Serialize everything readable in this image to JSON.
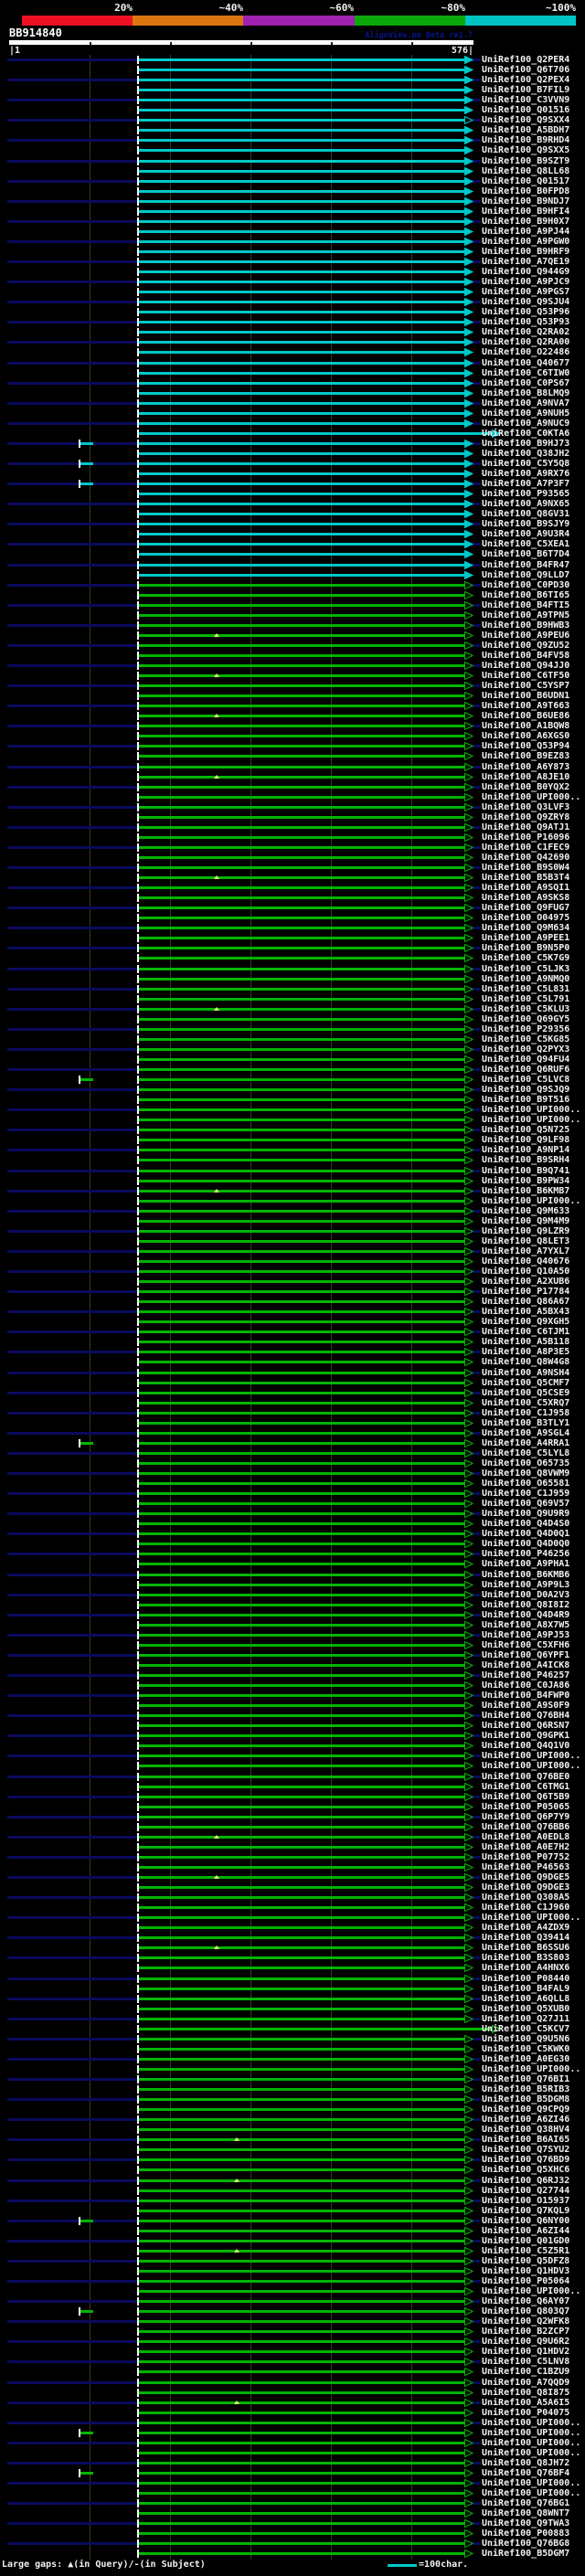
{
  "header": {
    "scale": {
      "labels": [
        "20%",
        "~40%",
        "~60%",
        "~80%",
        "~100%"
      ],
      "colors": [
        "#ee1124",
        "#dd7611",
        "#a121b1",
        "#0aa80a",
        "#00c4c4"
      ]
    },
    "query_name": "BB914840",
    "app_title": "AlignView.pm Beta re1.7",
    "ruler": {
      "start_label": "|1",
      "end_label": "576|"
    }
  },
  "footer": {
    "gaps_legend": "Large gaps: ▲(in Query)/-(in Subject)",
    "scale_legend": "=100char."
  },
  "hit_colors": {
    "cyan": "#00c8c8",
    "green": "#00b400",
    "baseline": "#0a0a5e"
  },
  "rows": [
    {
      "label": "UniRef100_Q2PER4",
      "c": "cyan"
    },
    {
      "label": "UniRef100_Q6T706",
      "c": "cyan"
    },
    {
      "label": "UniRef100_Q2PEX4",
      "c": "cyan"
    },
    {
      "label": "UniRef100_B7FIL9",
      "c": "cyan"
    },
    {
      "label": "UniRef100_C3VVN9",
      "c": "cyan"
    },
    {
      "label": "UniRef100_Q01516",
      "c": "cyan"
    },
    {
      "label": "UniRef100_Q9SXX4",
      "c": "cyan",
      "hollow": 1
    },
    {
      "label": "UniRef100_A5BDH7",
      "c": "cyan"
    },
    {
      "label": "UniRef100_B9RHD4",
      "c": "cyan"
    },
    {
      "label": "UniRef100_Q9SXX5",
      "c": "cyan"
    },
    {
      "label": "UniRef100_B9SZT9",
      "c": "cyan"
    },
    {
      "label": "UniRef100_Q8LL68",
      "c": "cyan"
    },
    {
      "label": "UniRef100_Q01517",
      "c": "cyan"
    },
    {
      "label": "UniRef100_B0FPD8",
      "c": "cyan"
    },
    {
      "label": "UniRef100_B9NDJ7",
      "c": "cyan"
    },
    {
      "label": "UniRef100_B9HFI4",
      "c": "cyan"
    },
    {
      "label": "UniRef100_B9H0X7",
      "c": "cyan"
    },
    {
      "label": "UniRef100_A9PJ44",
      "c": "cyan"
    },
    {
      "label": "UniRef100_A9PGW0",
      "c": "cyan"
    },
    {
      "label": "UniRef100_B9HRF9",
      "c": "cyan"
    },
    {
      "label": "UniRef100_A7QE19",
      "c": "cyan"
    },
    {
      "label": "UniRef100_Q944G9",
      "c": "cyan"
    },
    {
      "label": "UniRef100_A9PJC9",
      "c": "cyan"
    },
    {
      "label": "UniRef100_A9PGS7",
      "c": "cyan"
    },
    {
      "label": "UniRef100_Q9SJU4",
      "c": "cyan"
    },
    {
      "label": "UniRef100_Q53P96",
      "c": "cyan"
    },
    {
      "label": "UniRef100_Q53P93",
      "c": "cyan"
    },
    {
      "label": "UniRef100_Q2RA02",
      "c": "cyan"
    },
    {
      "label": "UniRef100_Q2RA00",
      "c": "cyan"
    },
    {
      "label": "UniRef100_O22486",
      "c": "cyan"
    },
    {
      "label": "UniRef100_Q40677",
      "c": "cyan"
    },
    {
      "label": "UniRef100_C6TIW0",
      "c": "cyan"
    },
    {
      "label": "UniRef100_C0PS67",
      "c": "cyan"
    },
    {
      "label": "UniRef100_B8LMQ9",
      "c": "cyan"
    },
    {
      "label": "UniRef100_A9NVA7",
      "c": "cyan"
    },
    {
      "label": "UniRef100_A9NUH5",
      "c": "cyan"
    },
    {
      "label": "UniRef100_A9NUC9",
      "c": "cyan"
    },
    {
      "label": "UniRef100_C0KTA6",
      "c": "cyan",
      "ext": 1
    },
    {
      "label": "UniRef100_B9HJ73",
      "c": "cyan",
      "lead": 1
    },
    {
      "label": "UniRef100_Q38JH2",
      "c": "cyan"
    },
    {
      "label": "UniRef100_C5Y5Q8",
      "c": "cyan",
      "lead": 1
    },
    {
      "label": "UniRef100_A9RX76",
      "c": "cyan"
    },
    {
      "label": "UniRef100_A7P3F7",
      "c": "cyan",
      "lead": 1
    },
    {
      "label": "UniRef100_P93565",
      "c": "cyan"
    },
    {
      "label": "UniRef100_A9NX65",
      "c": "cyan"
    },
    {
      "label": "UniRef100_Q8GV31",
      "c": "cyan"
    },
    {
      "label": "UniRef100_B9SJY9",
      "c": "cyan"
    },
    {
      "label": "UniRef100_A9U3R4",
      "c": "cyan"
    },
    {
      "label": "UniRef100_C5XEA1",
      "c": "cyan"
    },
    {
      "label": "UniRef100_B6T7D4",
      "c": "cyan"
    },
    {
      "label": "UniRef100_B4FR47",
      "c": "cyan"
    },
    {
      "label": "UniRef100_Q9LLD7",
      "c": "cyan"
    },
    {
      "label": "UniRef100_C0PD30",
      "c": "green"
    },
    {
      "label": "UniRef100_B6TI65",
      "c": "green"
    },
    {
      "label": "UniRef100_B4FTI5",
      "c": "green"
    },
    {
      "label": "UniRef100_A9TPN5",
      "c": "green"
    },
    {
      "label": "UniRef100_B9HWB3",
      "c": "green"
    },
    {
      "label": "UniRef100_A9PEU6",
      "c": "green",
      "dot": 234
    },
    {
      "label": "UniRef100_Q9ZU52",
      "c": "green"
    },
    {
      "label": "UniRef100_B4FV58",
      "c": "green"
    },
    {
      "label": "UniRef100_Q94JJ0",
      "c": "green"
    },
    {
      "label": "UniRef100_C6TF50",
      "c": "green",
      "dot": 234
    },
    {
      "label": "UniRef100_C5YSP7",
      "c": "green"
    },
    {
      "label": "UniRef100_B6UDN1",
      "c": "green"
    },
    {
      "label": "UniRef100_A9T663",
      "c": "green"
    },
    {
      "label": "UniRef100_B6UE86",
      "c": "green",
      "dot": 234
    },
    {
      "label": "UniRef100_A1BQW8",
      "c": "green"
    },
    {
      "label": "UniRef100_A6XGS0",
      "c": "green"
    },
    {
      "label": "UniRef100_Q53P94",
      "c": "green"
    },
    {
      "label": "UniRef100_B9EZ83",
      "c": "green"
    },
    {
      "label": "UniRef100_A6Y873",
      "c": "green"
    },
    {
      "label": "UniRef100_A8JE10",
      "c": "green",
      "dot": 234
    },
    {
      "label": "UniRef100_B0YQX2",
      "c": "green"
    },
    {
      "label": "UniRef100_UPI000..",
      "c": "green"
    },
    {
      "label": "UniRef100_Q3LVF3",
      "c": "green"
    },
    {
      "label": "UniRef100_Q9ZRY8",
      "c": "green"
    },
    {
      "label": "UniRef100_Q9ATJ1",
      "c": "green"
    },
    {
      "label": "UniRef100_P16096",
      "c": "green"
    },
    {
      "label": "UniRef100_C1FEC9",
      "c": "green"
    },
    {
      "label": "UniRef100_Q42690",
      "c": "green"
    },
    {
      "label": "UniRef100_B9S0W4",
      "c": "green"
    },
    {
      "label": "UniRef100_B5B3T4",
      "c": "green",
      "dot": 234
    },
    {
      "label": "UniRef100_A9SQI1",
      "c": "green"
    },
    {
      "label": "UniRef100_A9SKS8",
      "c": "green"
    },
    {
      "label": "UniRef100_Q9FUG7",
      "c": "green"
    },
    {
      "label": "UniRef100_O04975",
      "c": "green"
    },
    {
      "label": "UniRef100_Q9M634",
      "c": "green"
    },
    {
      "label": "UniRef100_A9PEE1",
      "c": "green"
    },
    {
      "label": "UniRef100_B9N5P0",
      "c": "green"
    },
    {
      "label": "UniRef100_C5K7G9",
      "c": "green"
    },
    {
      "label": "UniRef100_C5LJK3",
      "c": "green"
    },
    {
      "label": "UniRef100_A9NMQ0",
      "c": "green"
    },
    {
      "label": "UniRef100_C5L831",
      "c": "green"
    },
    {
      "label": "UniRef100_C5L791",
      "c": "green"
    },
    {
      "label": "UniRef100_C5KLU3",
      "c": "green",
      "dot": 234
    },
    {
      "label": "UniRef100_Q69GY5",
      "c": "green"
    },
    {
      "label": "UniRef100_P29356",
      "c": "green"
    },
    {
      "label": "UniRef100_C5KG85",
      "c": "green"
    },
    {
      "label": "UniRef100_Q2PYX3",
      "c": "green"
    },
    {
      "label": "UniRef100_Q94FU4",
      "c": "green"
    },
    {
      "label": "UniRef100_Q6RUF6",
      "c": "green"
    },
    {
      "label": "UniRef100_C5LVC8",
      "c": "green",
      "lead": 1
    },
    {
      "label": "UniRef100_Q9SJQ9",
      "c": "green"
    },
    {
      "label": "UniRef100_B9T516",
      "c": "green"
    },
    {
      "label": "UniRef100_UPI000..",
      "c": "green"
    },
    {
      "label": "UniRef100_UPI000..",
      "c": "green"
    },
    {
      "label": "UniRef100_Q5N725",
      "c": "green"
    },
    {
      "label": "UniRef100_Q9LF98",
      "c": "green"
    },
    {
      "label": "UniRef100_A9NP14",
      "c": "green"
    },
    {
      "label": "UniRef100_B9SRH4",
      "c": "green"
    },
    {
      "label": "UniRef100_B9Q741",
      "c": "green"
    },
    {
      "label": "UniRef100_B9PW34",
      "c": "green"
    },
    {
      "label": "UniRef100_B6KMB7",
      "c": "green",
      "dot": 234
    },
    {
      "label": "UniRef100_UPI000..",
      "c": "green"
    },
    {
      "label": "UniRef100_Q9M633",
      "c": "green"
    },
    {
      "label": "UniRef100_Q9M4M9",
      "c": "green"
    },
    {
      "label": "UniRef100_Q9LZR9",
      "c": "green"
    },
    {
      "label": "UniRef100_Q8LET3",
      "c": "green"
    },
    {
      "label": "UniRef100_A7YXL7",
      "c": "green"
    },
    {
      "label": "UniRef100_Q40676",
      "c": "green"
    },
    {
      "label": "UniRef100_Q10A50",
      "c": "green"
    },
    {
      "label": "UniRef100_A2XUB6",
      "c": "green"
    },
    {
      "label": "UniRef100_P17784",
      "c": "green"
    },
    {
      "label": "UniRef100_Q86A67",
      "c": "green"
    },
    {
      "label": "UniRef100_A5BX43",
      "c": "green"
    },
    {
      "label": "UniRef100_Q9XGH5",
      "c": "green"
    },
    {
      "label": "UniRef100_C6TJM1",
      "c": "green"
    },
    {
      "label": "UniRef100_A5B118",
      "c": "green"
    },
    {
      "label": "UniRef100_A8P3E5",
      "c": "green"
    },
    {
      "label": "UniRef100_Q8W4G8",
      "c": "green"
    },
    {
      "label": "UniRef100_A9NSH4",
      "c": "green"
    },
    {
      "label": "UniRef100_Q5CMF7",
      "c": "green"
    },
    {
      "label": "UniRef100_Q5CSE9",
      "c": "green"
    },
    {
      "label": "UniRef100_C5XRQ7",
      "c": "green"
    },
    {
      "label": "UniRef100_C1J958",
      "c": "green"
    },
    {
      "label": "UniRef100_B3TLY1",
      "c": "green"
    },
    {
      "label": "UniRef100_A9SGL4",
      "c": "green"
    },
    {
      "label": "UniRef100_A4RRA1",
      "c": "green",
      "lead": 1
    },
    {
      "label": "UniRef100_C5LYL8",
      "c": "green"
    },
    {
      "label": "UniRef100_O65735",
      "c": "green"
    },
    {
      "label": "UniRef100_Q8VWM9",
      "c": "green"
    },
    {
      "label": "UniRef100_O65581",
      "c": "green"
    },
    {
      "label": "UniRef100_C1J959",
      "c": "green"
    },
    {
      "label": "UniRef100_Q69V57",
      "c": "green"
    },
    {
      "label": "UniRef100_Q9U9R9",
      "c": "green"
    },
    {
      "label": "UniRef100_Q4D4S0",
      "c": "green"
    },
    {
      "label": "UniRef100_Q4D0Q1",
      "c": "green"
    },
    {
      "label": "UniRef100_Q4D0Q0",
      "c": "green"
    },
    {
      "label": "UniRef100_P46256",
      "c": "green"
    },
    {
      "label": "UniRef100_A9PHA1",
      "c": "green"
    },
    {
      "label": "UniRef100_B6KMB6",
      "c": "green"
    },
    {
      "label": "UniRef100_A9P9L3",
      "c": "green"
    },
    {
      "label": "UniRef100_D0A2V3",
      "c": "green"
    },
    {
      "label": "UniRef100_Q8I8I2",
      "c": "green"
    },
    {
      "label": "UniRef100_Q4D4R9",
      "c": "green"
    },
    {
      "label": "UniRef100_A8X7W5",
      "c": "green"
    },
    {
      "label": "UniRef100_A9PJ53",
      "c": "green"
    },
    {
      "label": "UniRef100_C5XFH6",
      "c": "green"
    },
    {
      "label": "UniRef100_Q6YPF1",
      "c": "green"
    },
    {
      "label": "UniRef100_A4ICK8",
      "c": "green"
    },
    {
      "label": "UniRef100_P46257",
      "c": "green"
    },
    {
      "label": "UniRef100_C0JA86",
      "c": "green"
    },
    {
      "label": "UniRef100_B4FWP0",
      "c": "green"
    },
    {
      "label": "UniRef100_A9S0F9",
      "c": "green"
    },
    {
      "label": "UniRef100_Q76BH4",
      "c": "green"
    },
    {
      "label": "UniRef100_Q6RSN7",
      "c": "green"
    },
    {
      "label": "UniRef100_Q9GPK1",
      "c": "green"
    },
    {
      "label": "UniRef100_Q4Q1V0",
      "c": "green"
    },
    {
      "label": "UniRef100_UPI000..",
      "c": "green"
    },
    {
      "label": "UniRef100_UPI000..",
      "c": "green"
    },
    {
      "label": "UniRef100_Q76BE0",
      "c": "green"
    },
    {
      "label": "UniRef100_C6TMG1",
      "c": "green"
    },
    {
      "label": "UniRef100_Q6T5B9",
      "c": "green"
    },
    {
      "label": "UniRef100_P05065",
      "c": "green"
    },
    {
      "label": "UniRef100_Q6P7Y9",
      "c": "green"
    },
    {
      "label": "UniRef100_Q76BB6",
      "c": "green"
    },
    {
      "label": "UniRef100_A0EDL8",
      "c": "green",
      "dot": 234
    },
    {
      "label": "UniRef100_A0E7H2",
      "c": "green"
    },
    {
      "label": "UniRef100_P07752",
      "c": "green"
    },
    {
      "label": "UniRef100_P46563",
      "c": "green"
    },
    {
      "label": "UniRef100_Q9DGE5",
      "c": "green",
      "dot": 234
    },
    {
      "label": "UniRef100_Q9DGE3",
      "c": "green"
    },
    {
      "label": "UniRef100_Q308A5",
      "c": "green"
    },
    {
      "label": "UniRef100_C1J960",
      "c": "green"
    },
    {
      "label": "UniRef100_UPI000..",
      "c": "green"
    },
    {
      "label": "UniRef100_A4ZDX9",
      "c": "green"
    },
    {
      "label": "UniRef100_Q39414",
      "c": "green"
    },
    {
      "label": "UniRef100_B6SSU6",
      "c": "green",
      "dot": 234
    },
    {
      "label": "UniRef100_B3S803",
      "c": "green"
    },
    {
      "label": "UniRef100_A4HNX6",
      "c": "green"
    },
    {
      "label": "UniRef100_P08440",
      "c": "green"
    },
    {
      "label": "UniRef100_B4FAL9",
      "c": "green"
    },
    {
      "label": "UniRef100_A6QLL8",
      "c": "green"
    },
    {
      "label": "UniRef100_Q5XUB0",
      "c": "green"
    },
    {
      "label": "UniRef100_Q27J11",
      "c": "green"
    },
    {
      "label": "UniRef100_C5KCV7",
      "c": "green",
      "ext": 1
    },
    {
      "label": "UniRef100_Q9U5N6",
      "c": "green"
    },
    {
      "label": "UniRef100_C5KWK0",
      "c": "green"
    },
    {
      "label": "UniRef100_A0EG30",
      "c": "green"
    },
    {
      "label": "UniRef100_UPI000..",
      "c": "green"
    },
    {
      "label": "UniRef100_Q76BI1",
      "c": "green"
    },
    {
      "label": "UniRef100_B5RIB3",
      "c": "green"
    },
    {
      "label": "UniRef100_B5DGM8",
      "c": "green"
    },
    {
      "label": "UniRef100_Q9CPQ9",
      "c": "green"
    },
    {
      "label": "UniRef100_A6ZI46",
      "c": "green"
    },
    {
      "label": "UniRef100_Q38HV4",
      "c": "green"
    },
    {
      "label": "UniRef100_B6AI65",
      "c": "green",
      "dot": 256
    },
    {
      "label": "UniRef100_Q7SYU2",
      "c": "green"
    },
    {
      "label": "UniRef100_Q76BD9",
      "c": "green"
    },
    {
      "label": "UniRef100_Q5XHC6",
      "c": "green"
    },
    {
      "label": "UniRef100_Q6RJ32",
      "c": "green",
      "dot": 256
    },
    {
      "label": "UniRef100_Q27744",
      "c": "green"
    },
    {
      "label": "UniRef100_O15937",
      "c": "green"
    },
    {
      "label": "UniRef100_Q7KQL9",
      "c": "green"
    },
    {
      "label": "UniRef100_Q6NY00",
      "c": "green",
      "lead": 1
    },
    {
      "label": "UniRef100_A6ZI44",
      "c": "green"
    },
    {
      "label": "UniRef100_Q01GD0",
      "c": "green"
    },
    {
      "label": "UniRef100_C5Z5R1",
      "c": "green",
      "dot": 256
    },
    {
      "label": "UniRef100_Q5DFZ8",
      "c": "green"
    },
    {
      "label": "UniRef100_Q1HDV3",
      "c": "green"
    },
    {
      "label": "UniRef100_P05064",
      "c": "green"
    },
    {
      "label": "UniRef100_UPI000..",
      "c": "green"
    },
    {
      "label": "UniRef100_Q6AY07",
      "c": "green"
    },
    {
      "label": "UniRef100_Q803Q7",
      "c": "green",
      "lead": 1
    },
    {
      "label": "UniRef100_Q2WFK8",
      "c": "green"
    },
    {
      "label": "UniRef100_B2ZCP7",
      "c": "green"
    },
    {
      "label": "UniRef100_Q9U6R2",
      "c": "green"
    },
    {
      "label": "UniRef100_Q1HDV2",
      "c": "green"
    },
    {
      "label": "UniRef100_C5LNV8",
      "c": "green"
    },
    {
      "label": "UniRef100_C1BZU9",
      "c": "green"
    },
    {
      "label": "UniRef100_A7QQD9",
      "c": "green"
    },
    {
      "label": "UniRef100_Q8I875",
      "c": "green"
    },
    {
      "label": "UniRef100_A5A6I5",
      "c": "green",
      "dot": 256
    },
    {
      "label": "UniRef100_P04075",
      "c": "green"
    },
    {
      "label": "UniRef100_UPI000..",
      "c": "green"
    },
    {
      "label": "UniRef100_UPI000..",
      "c": "green",
      "lead": 1
    },
    {
      "label": "UniRef100_UPI000..",
      "c": "green"
    },
    {
      "label": "UniRef100_UPI000..",
      "c": "green"
    },
    {
      "label": "UniRef100_Q8JH72",
      "c": "green"
    },
    {
      "label": "UniRef100_Q76BF4",
      "c": "green",
      "lead": 1
    },
    {
      "label": "UniRef100_UPI000..",
      "c": "green"
    },
    {
      "label": "UniRef100_UPI000..",
      "c": "green"
    },
    {
      "label": "UniRef100_Q76BG1",
      "c": "green"
    },
    {
      "label": "UniRef100_Q8WNT7",
      "c": "green"
    },
    {
      "label": "UniRef100_Q9TWA3",
      "c": "green"
    },
    {
      "label": "UniRef100_P00883",
      "c": "green"
    },
    {
      "label": "UniRef100_Q76BG8",
      "c": "green"
    },
    {
      "label": "UniRef100_B5DGM7",
      "c": "green"
    }
  ]
}
